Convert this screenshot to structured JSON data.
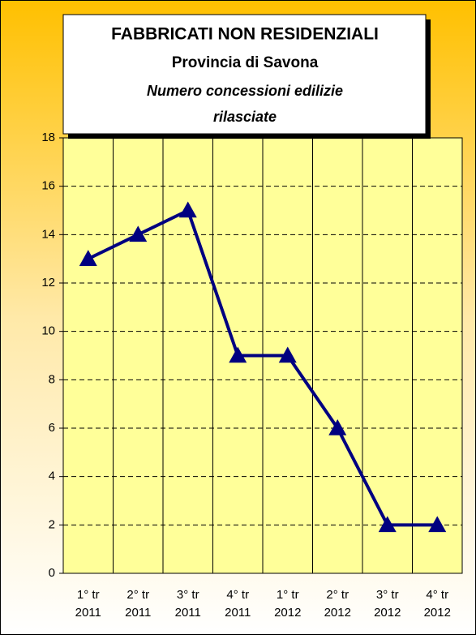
{
  "chart_data": {
    "type": "line",
    "title": "FABBRICATI NON RESIDENZIALI",
    "title2": "Provincia di Savona",
    "subtitle": [
      "Numero concessioni edilizie",
      "rilasciate"
    ],
    "categories": [
      [
        "1° tr",
        "2011"
      ],
      [
        "2° tr",
        "2011"
      ],
      [
        "3° tr",
        "2011"
      ],
      [
        "4° tr",
        "2011"
      ],
      [
        "1° tr",
        "2012"
      ],
      [
        "2° tr",
        "2012"
      ],
      [
        "3° tr",
        "2012"
      ],
      [
        "4° tr",
        "2012"
      ]
    ],
    "values": [
      13,
      14,
      15,
      9,
      9,
      6,
      2,
      2
    ],
    "color": "#000080",
    "ylim": [
      0,
      18
    ],
    "yticks": [
      0,
      2,
      4,
      6,
      8,
      10,
      12,
      14,
      16,
      18
    ],
    "grid": true
  }
}
